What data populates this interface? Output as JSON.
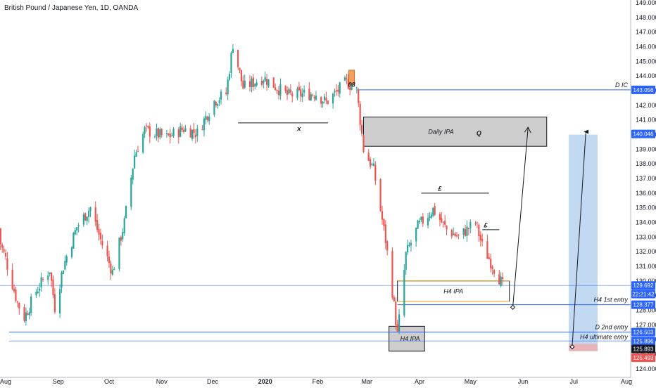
{
  "chart_data": {
    "type": "candlestick",
    "title": "British Pound / Japanese Yen, 1D, OANDA",
    "y_range": [
      123.7,
      149.1
    ],
    "y_ticks": [
      124.0,
      125.0,
      126.0,
      127.0,
      128.0,
      129.0,
      130.0,
      131.0,
      132.0,
      133.0,
      134.0,
      135.0,
      136.0,
      137.0,
      138.0,
      139.0,
      140.0,
      141.0,
      142.0,
      143.0,
      144.0,
      145.0,
      146.0,
      147.0,
      148.0,
      149.0
    ],
    "y_tick_labels": [
      "124.000",
      "125.000",
      "126.000",
      "127.000",
      "128.000",
      "129.000",
      "130.000",
      "131.000",
      "132.000",
      "133.000",
      "134.000",
      "135.000",
      "136.000",
      "137.000",
      "138.000",
      "139.000",
      "140.000",
      "141.000",
      "142.000",
      "143.000",
      "144.000",
      "145.000",
      "146.000",
      "147.000",
      "148.000",
      "149.000"
    ],
    "x_range": [
      "2019-08-01",
      "2020-08-01"
    ],
    "x_ticks": [
      {
        "date": "2019-08-01",
        "label": "Aug"
      },
      {
        "date": "2019-09-01",
        "label": "Sep"
      },
      {
        "date": "2019-10-01",
        "label": "Oct"
      },
      {
        "date": "2019-11-01",
        "label": "Nov"
      },
      {
        "date": "2019-12-01",
        "label": "Dec"
      },
      {
        "date": "2020-01-01",
        "label": "2020"
      },
      {
        "date": "2020-02-01",
        "label": "Feb"
      },
      {
        "date": "2020-03-01",
        "label": "Mar"
      },
      {
        "date": "2020-04-01",
        "label": "Apr"
      },
      {
        "date": "2020-05-01",
        "label": "May"
      },
      {
        "date": "2020-06-01",
        "label": "Jun"
      },
      {
        "date": "2020-07-01",
        "label": "Jul"
      },
      {
        "date": "2020-08-01",
        "label": "Aug"
      }
    ],
    "price_anchors": [
      {
        "date": "2019-07-26",
        "price": 133.6
      },
      {
        "date": "2019-08-01",
        "price": 131.5
      },
      {
        "date": "2019-08-08",
        "price": 128.5
      },
      {
        "date": "2019-08-12",
        "price": 127.5
      },
      {
        "date": "2019-08-19",
        "price": 129.3
      },
      {
        "date": "2019-08-27",
        "price": 130.8
      },
      {
        "date": "2019-08-30",
        "price": 128.2
      },
      {
        "date": "2019-09-04",
        "price": 131.0
      },
      {
        "date": "2019-09-12",
        "price": 133.7
      },
      {
        "date": "2019-09-20",
        "price": 135.0
      },
      {
        "date": "2019-09-26",
        "price": 132.8
      },
      {
        "date": "2019-10-03",
        "price": 130.6
      },
      {
        "date": "2019-10-10",
        "price": 134.0
      },
      {
        "date": "2019-10-16",
        "price": 138.6
      },
      {
        "date": "2019-10-22",
        "price": 140.3
      },
      {
        "date": "2019-11-04",
        "price": 139.8
      },
      {
        "date": "2019-11-14",
        "price": 140.4
      },
      {
        "date": "2019-11-22",
        "price": 140.1
      },
      {
        "date": "2019-12-02",
        "price": 142.3
      },
      {
        "date": "2019-12-09",
        "price": 142.8
      },
      {
        "date": "2019-12-13",
        "price": 146.2
      },
      {
        "date": "2019-12-19",
        "price": 143.2
      },
      {
        "date": "2019-12-31",
        "price": 143.9
      },
      {
        "date": "2020-01-14",
        "price": 142.7
      },
      {
        "date": "2020-01-31",
        "price": 142.8
      },
      {
        "date": "2020-02-06",
        "price": 142.2
      },
      {
        "date": "2020-02-18",
        "price": 143.6
      },
      {
        "date": "2020-02-24",
        "price": 143.0
      },
      {
        "date": "2020-02-28",
        "price": 139.0
      },
      {
        "date": "2020-03-05",
        "price": 137.6
      },
      {
        "date": "2020-03-12",
        "price": 132.8
      },
      {
        "date": "2020-03-16",
        "price": 129.3
      },
      {
        "date": "2020-03-19",
        "price": 126.3
      },
      {
        "date": "2020-03-24",
        "price": 131.8
      },
      {
        "date": "2020-03-31",
        "price": 133.7
      },
      {
        "date": "2020-04-09",
        "price": 134.9
      },
      {
        "date": "2020-04-17",
        "price": 133.5
      },
      {
        "date": "2020-04-24",
        "price": 133.0
      },
      {
        "date": "2020-05-04",
        "price": 134.0
      },
      {
        "date": "2020-05-08",
        "price": 132.4
      },
      {
        "date": "2020-05-14",
        "price": 131.1
      },
      {
        "date": "2020-05-18",
        "price": 130.2
      },
      {
        "date": "2020-05-20",
        "price": 129.7
      }
    ],
    "horizontal_lines": [
      {
        "price": 143.056,
        "label": "D IC",
        "color": "#2962ff"
      },
      {
        "price": 129.692,
        "label": "",
        "color": "#2962ff"
      },
      {
        "price": 128.377,
        "label": "H4 1st entry",
        "color": "#2962ff"
      },
      {
        "price": 126.503,
        "label": "D 2nd entry",
        "color": "#2962ff"
      }
    ],
    "zones": [
      {
        "label": "Daily IPA",
        "from": "2020-02-28",
        "to": "2020-06-15",
        "low": 139.2,
        "high": 141.2,
        "fill": "#c8c8c8"
      },
      {
        "label": "H4 IPA",
        "from": "2020-03-19",
        "to": "2020-05-24",
        "low": 128.6,
        "high": 130.0,
        "fill": "#ffffff"
      },
      {
        "label": "H4 IPA",
        "from": "2020-03-14",
        "to": "2020-04-04",
        "low": 125.2,
        "high": 126.9,
        "fill": "#c8c8c8"
      }
    ],
    "projection": {
      "from": "2020-06-28",
      "to": "2020-07-15",
      "low": 125.5,
      "high": 140.0,
      "fill": "#b6d4ee"
    },
    "target_box": {
      "from": "2020-06-28",
      "to": "2020-07-15",
      "low": 125.2,
      "high": 125.7,
      "fill": "#e8b4b8"
    },
    "annotations": [
      {
        "text": "H4 ultimate entry",
        "price": 125.896
      },
      {
        "text": "x",
        "date": "2020-01-21",
        "price": 140.4
      },
      {
        "text": "£",
        "date": "2020-04-13",
        "price": 136.3
      },
      {
        "text": "£",
        "date": "2020-05-10",
        "price": 133.8
      },
      {
        "text": "Q",
        "date": "2020-05-06",
        "price": 140.1
      },
      {
        "text": "08",
        "date": "2020-02-21",
        "price": 143.4
      }
    ],
    "price_labels": [
      {
        "text": "143.056",
        "bg": "#2962ff"
      },
      {
        "text": "140.046",
        "bg": "#2962ff"
      },
      {
        "text": "129.692",
        "bg": "#2962ff"
      },
      {
        "text": "22:21:42",
        "bg": "#2962ff"
      },
      {
        "text": "128.377",
        "bg": "#2962ff"
      },
      {
        "text": "126.503",
        "bg": "#2962ff"
      },
      {
        "text": "125.896",
        "bg": "#2962ff"
      },
      {
        "text": "125.893",
        "bg": "#131722"
      },
      {
        "text": "125.493",
        "bg": "#ef5350"
      }
    ],
    "colors": {
      "up": "#26a69a",
      "down": "#ef5350",
      "line": "#2962ff"
    }
  }
}
